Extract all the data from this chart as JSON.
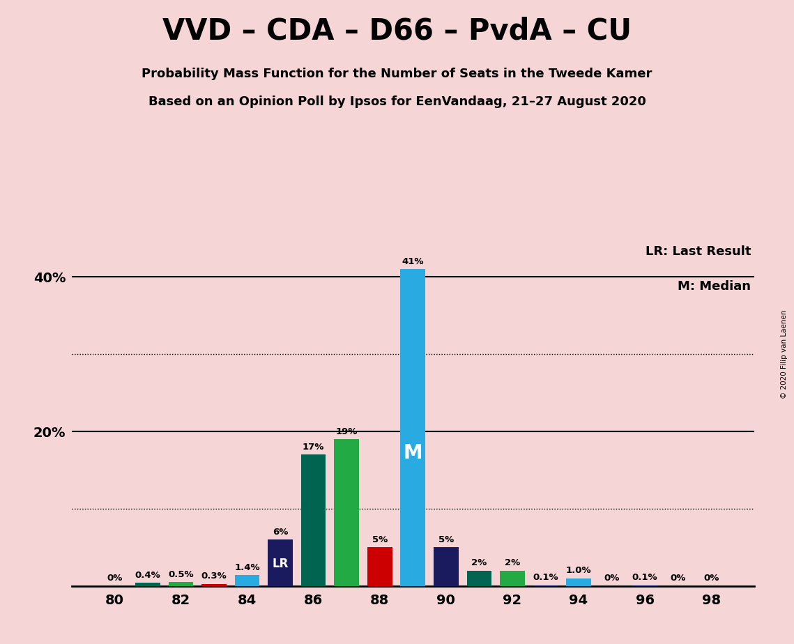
{
  "title": "VVD – CDA – D66 – PvdA – CU",
  "subtitle1": "Probability Mass Function for the Number of Seats in the Tweede Kamer",
  "subtitle2": "Based on an Opinion Poll by Ipsos for EenVandaag, 21–27 August 2020",
  "copyright": "© 2020 Filip van Laenen",
  "legend_lr": "LR: Last Result",
  "legend_m": "M: Median",
  "background_color": "#f5d5d5",
  "bar_width": 0.75,
  "bars": [
    {
      "seat": 80,
      "value": 0.0,
      "color": "#1a1a5e",
      "label": "0%"
    },
    {
      "seat": 81,
      "value": 0.4,
      "color": "#006450",
      "label": "0.4%"
    },
    {
      "seat": 82,
      "value": 0.5,
      "color": "#22aa44",
      "label": "0.5%"
    },
    {
      "seat": 83,
      "value": 0.3,
      "color": "#cc0000",
      "label": "0.3%"
    },
    {
      "seat": 84,
      "value": 1.4,
      "color": "#29abe2",
      "label": "1.4%"
    },
    {
      "seat": 85,
      "value": 6.0,
      "color": "#1a1a5e",
      "label": "6%",
      "mark": "LR"
    },
    {
      "seat": 86,
      "value": 17.0,
      "color": "#006450",
      "label": "17%"
    },
    {
      "seat": 87,
      "value": 19.0,
      "color": "#22aa44",
      "label": "19%"
    },
    {
      "seat": 88,
      "value": 5.0,
      "color": "#cc0000",
      "label": "5%"
    },
    {
      "seat": 89,
      "value": 41.0,
      "color": "#29abe2",
      "label": "41%",
      "mark": "M"
    },
    {
      "seat": 90,
      "value": 5.0,
      "color": "#1a1a5e",
      "label": "5%"
    },
    {
      "seat": 91,
      "value": 2.0,
      "color": "#006450",
      "label": "2%"
    },
    {
      "seat": 92,
      "value": 2.0,
      "color": "#22aa44",
      "label": "2%"
    },
    {
      "seat": 93,
      "value": 0.1,
      "color": "#1a1a5e",
      "label": "0.1%"
    },
    {
      "seat": 94,
      "value": 1.0,
      "color": "#29abe2",
      "label": "1.0%"
    },
    {
      "seat": 95,
      "value": 0.0,
      "color": "#1a1a5e",
      "label": "0%"
    },
    {
      "seat": 96,
      "value": 0.1,
      "color": "#1a1a5e",
      "label": "0.1%"
    },
    {
      "seat": 97,
      "value": 0.0,
      "color": "#1a1a5e",
      "label": "0%"
    },
    {
      "seat": 98,
      "value": 0.0,
      "color": "#1a1a5e",
      "label": "0%"
    }
  ],
  "xlabel_seats": [
    80,
    82,
    84,
    86,
    88,
    90,
    92,
    94,
    96,
    98
  ],
  "ylim": [
    0,
    45
  ],
  "solid_lines": [
    20,
    40
  ],
  "dotted_lines": [
    10,
    30
  ],
  "ytick_positions": [
    20,
    40
  ],
  "ytick_labels": [
    "20%",
    "40%"
  ]
}
